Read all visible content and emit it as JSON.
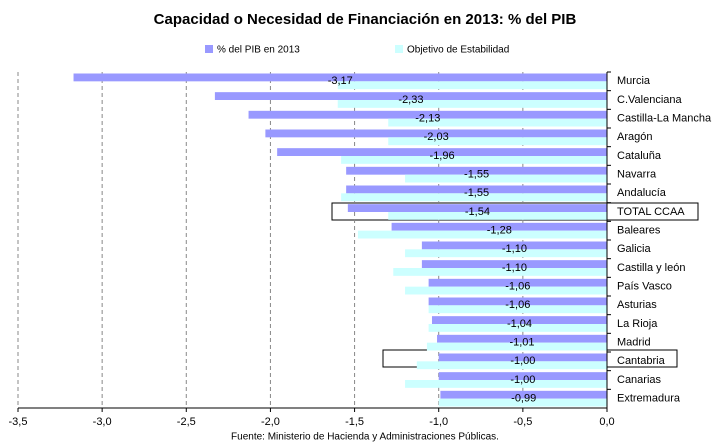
{
  "chart_data": {
    "type": "hbar",
    "title": "Capacidad o Necesidad de Financiación en 2013: % del PIB",
    "categories": [
      "Murcia",
      "C.Valenciana",
      "Castilla-La Mancha",
      "Aragón",
      "Cataluña",
      "Navarra",
      "Andalucía",
      "TOTAL CCAA",
      "Baleares",
      "Galicia",
      "Castilla y león",
      "País Vasco",
      "Asturias",
      "La Rioja",
      "Madrid",
      "Cantabria",
      "Canarias",
      "Extremadura"
    ],
    "series": [
      {
        "name": "% del PIB en 2013",
        "color": "#9999ff",
        "values": [
          -3.17,
          -2.33,
          -2.13,
          -2.03,
          -1.96,
          -1.55,
          -1.55,
          -1.54,
          -1.28,
          -1.1,
          -1.1,
          -1.06,
          -1.06,
          -1.04,
          -1.01,
          -1.0,
          -1.0,
          -0.99
        ],
        "value_labels": [
          "-3,17",
          "-2,33",
          "-2,13",
          "-2,03",
          "-1,96",
          "-1,55",
          "-1,55",
          "-1,54",
          "-1,28",
          "-1,10",
          "-1,10",
          "-1,06",
          "-1,06",
          "-1,04",
          "-1,01",
          "-1,00",
          "-1,00",
          "-0,99"
        ]
      },
      {
        "name": "Objetivo de Estabilidad",
        "color": "#ccffff",
        "values": [
          -1.6,
          -1.6,
          -1.3,
          -1.3,
          -1.58,
          -1.2,
          -1.58,
          -1.3,
          -1.48,
          -1.2,
          -1.27,
          -1.2,
          -1.06,
          -1.06,
          -1.07,
          -1.13,
          -1.2,
          -1.0
        ]
      }
    ],
    "xlim": [
      -3.5,
      0
    ],
    "xticks": [
      {
        "value": -3.5,
        "label": "-3,5"
      },
      {
        "value": -3,
        "label": "-3,0"
      },
      {
        "value": -2.5,
        "label": "-2,5"
      },
      {
        "value": -2,
        "label": "-2,0"
      },
      {
        "value": -1.5,
        "label": "-1,5"
      },
      {
        "value": -1,
        "label": "-1,0"
      },
      {
        "value": -0.5,
        "label": "-0,5"
      },
      {
        "value": 0,
        "label": "0,0"
      }
    ],
    "grid": true,
    "source": "Fuente: Ministerio de Hacienda y Administraciones Públicas."
  }
}
